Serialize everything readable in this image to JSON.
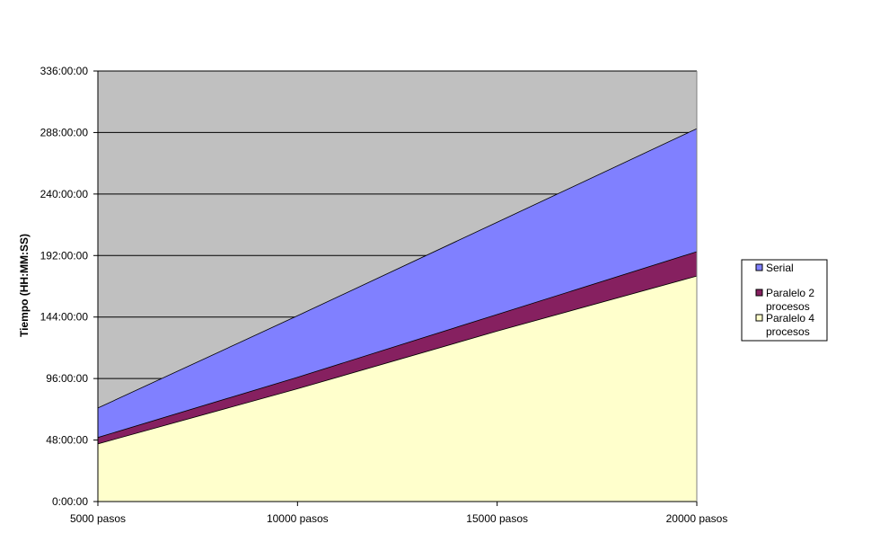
{
  "chart_data": {
    "type": "area",
    "stacked": true,
    "categories": [
      "5000 pasos",
      "10000 pasos",
      "15000 pasos",
      "20000 pasos"
    ],
    "ylabel": "Tiempo (HH:MM:SS)",
    "xlabel": "",
    "y_unit": "hours",
    "ylim": [
      0,
      336
    ],
    "yticks": [
      0,
      48,
      96,
      144,
      192,
      240,
      288,
      336
    ],
    "ytick_labels": [
      "0:00:00",
      "48:00:00",
      "96:00:00",
      "144:00:00",
      "192:00:00",
      "240:00:00",
      "288:00:00",
      "336:00:00"
    ],
    "grid": true,
    "plot_background": "#c0c0c0",
    "legend_position": "right",
    "series": [
      {
        "name": "Paralelo 4 procesos",
        "name_lines": [
          "Paralelo 4",
          "procesos"
        ],
        "values": [
          45,
          88,
          133,
          176
        ],
        "color": "#ffffcc"
      },
      {
        "name": "Paralelo 2 procesos",
        "name_lines": [
          "Paralelo 2",
          "procesos"
        ],
        "values": [
          50,
          97,
          146,
          195
        ],
        "color": "#862060"
      },
      {
        "name": "Serial",
        "name_lines": [
          "Serial"
        ],
        "values": [
          73,
          145,
          218,
          291
        ],
        "color": "#8080ff"
      }
    ],
    "legend_order": [
      "Serial",
      "Paralelo 2 procesos",
      "Paralelo 4 procesos"
    ]
  }
}
